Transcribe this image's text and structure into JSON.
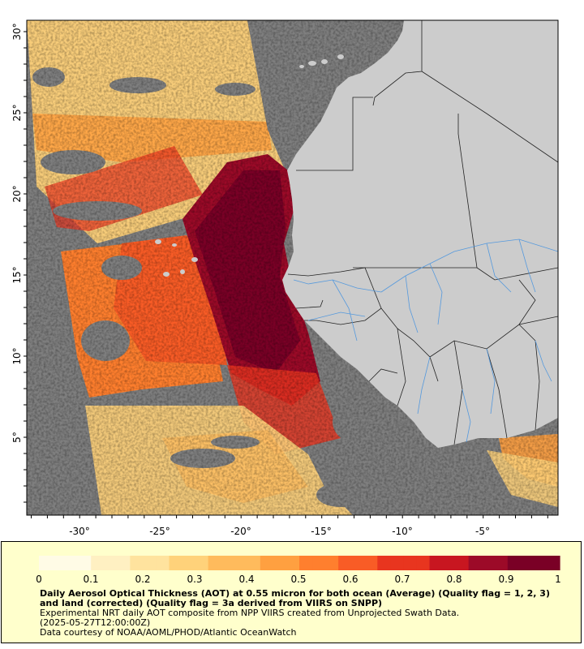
{
  "map": {
    "x_ticks": [
      "-30°",
      "-25°",
      "-20°",
      "-15°",
      "-10°",
      "-5°"
    ],
    "y_ticks": [
      "30°",
      "25°",
      "20°",
      "15°",
      "10°",
      "5°"
    ],
    "colors": {
      "ocean_nodata": "#7f7f7f",
      "land": "#cccccc",
      "borders": "#222222",
      "rivers": "#5599dd"
    }
  },
  "legend": {
    "scale_ticks": [
      "0",
      "0.1",
      "0.2",
      "0.3",
      "0.4",
      "0.5",
      "0.6",
      "0.7",
      "0.8",
      "0.9",
      "1"
    ],
    "colormap": [
      "#fffbe6",
      "#fff0c2",
      "#ffe39e",
      "#ffd27a",
      "#ffbb5c",
      "#ffa040",
      "#ff7f2e",
      "#f95c26",
      "#e8351f",
      "#c81620",
      "#9c0a28",
      "#7a0026"
    ],
    "title": "Daily Aerosol Optical Thickness (AOT) at 0.55 micron for both ocean (Average) (Quality flag = 1, 2, 3) and land (corrected) (Quality flag = 3a derived from VIIRS on SNPP)",
    "line1": "Experimental NRT daily AOT composite from NPP VIIRS created from Unprojected Swath Data.",
    "line2": "(2025-05-27T12:00:00Z)",
    "line3": "Data courtesy of NOAA/AOML/PHOD/Atlantic OceanWatch"
  }
}
